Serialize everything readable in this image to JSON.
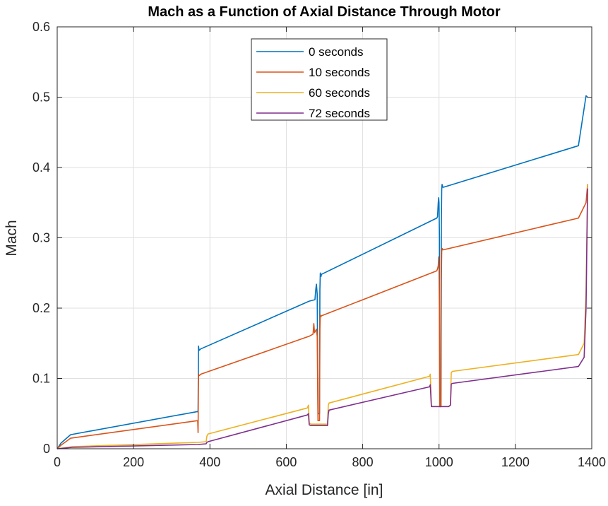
{
  "chart_data": {
    "type": "line",
    "title": "Mach as a Function of Axial Distance Through Motor",
    "xlabel": "Axial Distance [in]",
    "ylabel": "Mach",
    "xlim": [
      0,
      1400
    ],
    "ylim": [
      0,
      0.6
    ],
    "xticks": [
      0,
      200,
      400,
      600,
      800,
      1000,
      1200,
      1400
    ],
    "yticks": [
      0,
      0.1,
      0.2,
      0.3,
      0.4,
      0.5,
      0.6
    ],
    "xtick_labels": [
      "0",
      "200",
      "400",
      "600",
      "800",
      "1000",
      "1200",
      "1400"
    ],
    "ytick_labels": [
      "0",
      "0.1",
      "0.2",
      "0.3",
      "0.4",
      "0.5",
      "0.6"
    ],
    "grid": true,
    "legend_position": "top-center",
    "series": [
      {
        "name": "0 seconds",
        "color": "#0072BD",
        "x": [
          0,
          10,
          35,
          368,
          369,
          370,
          371,
          372,
          376,
          660,
          675,
          677,
          679,
          681,
          683,
          685,
          687,
          688,
          689,
          691,
          692,
          994,
          996,
          998,
          999,
          1000,
          1001,
          1002,
          1003,
          1004,
          1005,
          1006,
          1007,
          1008,
          1010,
          1012,
          1365,
          1385,
          1389
        ],
        "y": [
          0,
          0.008,
          0.02,
          0.053,
          0.052,
          0.146,
          0.142,
          0.14,
          0.142,
          0.21,
          0.212,
          0.226,
          0.234,
          0.22,
          0.05,
          0.05,
          0.05,
          0.226,
          0.25,
          0.245,
          0.248,
          0.328,
          0.33,
          0.35,
          0.357,
          0.35,
          0.3,
          0.06,
          0.06,
          0.06,
          0.06,
          0.32,
          0.368,
          0.376,
          0.372,
          0.372,
          0.431,
          0.502,
          0.5
        ]
      },
      {
        "name": "10 seconds",
        "color": "#D95319",
        "x": [
          0,
          10,
          35,
          368,
          369,
          370,
          371,
          372,
          376,
          660,
          670,
          672,
          674,
          679,
          681,
          683,
          685,
          687,
          688,
          689,
          691,
          692,
          994,
          996,
          998,
          999,
          1000,
          1001,
          1002,
          1003,
          1004,
          1005,
          1006,
          1007,
          1008,
          1010,
          1012,
          1365,
          1385,
          1389
        ],
        "y": [
          0,
          0.005,
          0.015,
          0.04,
          0.023,
          0.106,
          0.104,
          0.104,
          0.106,
          0.16,
          0.163,
          0.178,
          0.165,
          0.17,
          0.16,
          0.04,
          0.04,
          0.04,
          0.17,
          0.19,
          0.188,
          0.189,
          0.253,
          0.256,
          0.26,
          0.273,
          0.26,
          0.2,
          0.06,
          0.06,
          0.06,
          0.06,
          0.24,
          0.28,
          0.285,
          0.283,
          0.283,
          0.328,
          0.35,
          0.376
        ]
      },
      {
        "name": "60 seconds",
        "color": "#EDB120",
        "x": [
          0,
          40,
          368,
          390,
          392,
          395,
          655,
          658,
          660,
          664,
          708,
          710,
          712,
          975,
          977,
          980,
          982,
          1000,
          1001,
          1005,
          1025,
          1030,
          1032,
          1035,
          1365,
          1380,
          1385,
          1389
        ],
        "y": [
          0,
          0.003,
          0.009,
          0.01,
          0.018,
          0.021,
          0.058,
          0.062,
          0.037,
          0.035,
          0.035,
          0.062,
          0.065,
          0.103,
          0.106,
          0.062,
          0.06,
          0.06,
          0.06,
          0.06,
          0.06,
          0.062,
          0.108,
          0.11,
          0.134,
          0.15,
          0.22,
          0.375
        ]
      },
      {
        "name": "72 seconds",
        "color": "#7E2F8E",
        "x": [
          0,
          40,
          368,
          390,
          392,
          395,
          655,
          658,
          660,
          664,
          708,
          710,
          712,
          975,
          977,
          980,
          982,
          1000,
          1001,
          1005,
          1025,
          1030,
          1032,
          1035,
          1365,
          1380,
          1385,
          1389
        ],
        "y": [
          0,
          0.002,
          0.006,
          0.007,
          0.009,
          0.01,
          0.048,
          0.05,
          0.034,
          0.033,
          0.033,
          0.05,
          0.055,
          0.088,
          0.091,
          0.06,
          0.06,
          0.06,
          0.06,
          0.06,
          0.06,
          0.062,
          0.092,
          0.093,
          0.117,
          0.13,
          0.2,
          0.37
        ]
      }
    ]
  }
}
